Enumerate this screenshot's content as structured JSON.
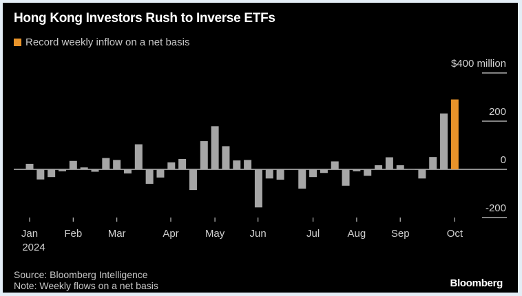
{
  "title": "Hong Kong Investors Rush to Inverse ETFs",
  "legend": {
    "label": "Record weekly inflow on a net basis",
    "color": "#e8932a"
  },
  "source": "Source: Bloomberg Intelligence",
  "note": "Note: Weekly flows on a net basis",
  "logo": "Bloomberg",
  "chart_data": {
    "type": "bar",
    "title": "Hong Kong Investors Rush to Inverse ETFs",
    "ylabel": "",
    "y_unit_label": "$400 million",
    "ylim": [
      -200,
      400
    ],
    "yticks": [
      {
        "value": 400,
        "label": "$400 million"
      },
      {
        "value": 200,
        "label": "200"
      },
      {
        "value": 0,
        "label": "0"
      },
      {
        "value": -200,
        "label": "-200"
      }
    ],
    "xticks": [
      {
        "index": 0,
        "label": "Jan",
        "sublabel": "2024"
      },
      {
        "index": 4,
        "label": "Feb"
      },
      {
        "index": 8,
        "label": "Mar"
      },
      {
        "index": 12.95,
        "label": "Apr"
      },
      {
        "index": 17,
        "label": "May"
      },
      {
        "index": 20.95,
        "label": "Jun"
      },
      {
        "index": 26,
        "label": "Jul"
      },
      {
        "index": 30,
        "label": "Aug"
      },
      {
        "index": 34,
        "label": "Sep"
      },
      {
        "index": 39,
        "label": "Oct"
      }
    ],
    "grid": "y-only, short right-side lines",
    "bar_color": "#a6a6a6",
    "highlight_color": "#e8932a",
    "highlight_index": 39,
    "categories": [
      "2024-01-05",
      "2024-01-12",
      "2024-01-19",
      "2024-01-26",
      "2024-02-02",
      "2024-02-09",
      "2024-02-16",
      "2024-02-23",
      "2024-03-01",
      "2024-03-08",
      "2024-03-15",
      "2024-03-22",
      "2024-03-29",
      "2024-04-05",
      "2024-04-12",
      "2024-04-19",
      "2024-04-26",
      "2024-05-03",
      "2024-05-10",
      "2024-05-17",
      "2024-05-24",
      "2024-05-31",
      "2024-06-07",
      "2024-06-14",
      "2024-06-21",
      "2024-06-28",
      "2024-07-05",
      "2024-07-12",
      "2024-07-19",
      "2024-07-26",
      "2024-08-02",
      "2024-08-09",
      "2024-08-16",
      "2024-08-23",
      "2024-08-30",
      "2024-09-06",
      "2024-09-13",
      "2024-09-20",
      "2024-09-27",
      "2024-10-04"
    ],
    "values": [
      23,
      -42,
      -32,
      -8,
      35,
      8,
      -10,
      47,
      39,
      -17,
      104,
      -60,
      -34,
      29,
      43,
      -86,
      117,
      179,
      96,
      37,
      39,
      -158,
      -38,
      -43,
      2,
      -80,
      -32,
      -15,
      33,
      -68,
      -8,
      -27,
      17,
      50,
      17,
      0,
      -38,
      51,
      232,
      290
    ]
  }
}
